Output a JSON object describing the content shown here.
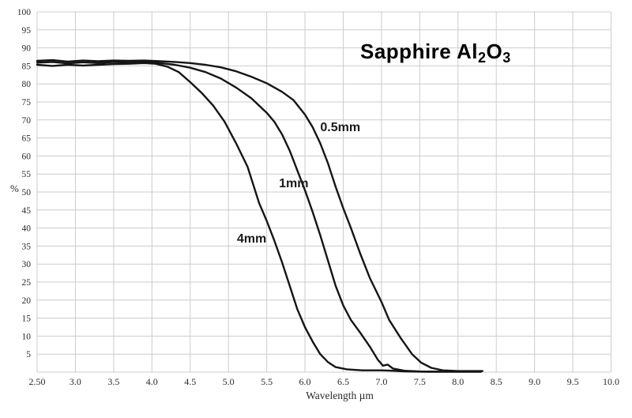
{
  "colors": {
    "background": "#ffffff",
    "grid": "#cccccc",
    "curve": "#151515",
    "text": "#2a2a2a"
  },
  "title": {
    "prefix": "Sapphire Al",
    "sub1": "2",
    "mid": "O",
    "sub2": "3"
  },
  "chart_data": {
    "type": "line",
    "title": "Sapphire Al2O3",
    "xlabel": "Wavelength µm",
    "ylabel": "%",
    "xlim": [
      2.5,
      10.0
    ],
    "ylim": [
      0,
      100
    ],
    "grid": true,
    "x_tick_values": [
      2.5,
      3.0,
      3.5,
      4.0,
      4.5,
      5.0,
      5.5,
      6.0,
      6.5,
      7.0,
      7.5,
      8.0,
      8.5,
      9.0,
      9.5,
      10.0
    ],
    "x_tick_labels": [
      "2.50",
      "3.0",
      "3.5",
      "4.0",
      "4.5",
      "5.0",
      "5.5",
      "6.0",
      "6.5",
      "7.0",
      "7.5",
      "8.0",
      "8.5",
      "9.0",
      "9.5",
      "10.0"
    ],
    "y_grid_step": 5,
    "y_tick_values": [
      100,
      95,
      90,
      85,
      80,
      75,
      70,
      65,
      60,
      55,
      50,
      45,
      40,
      35,
      30,
      25,
      20,
      15,
      10,
      5
    ],
    "y_tick_labels": [
      "100",
      "95",
      "90",
      "85",
      "80",
      "75",
      "70",
      "65",
      "60",
      "55",
      "50",
      "45",
      "40",
      "35",
      "30",
      "25",
      "20",
      "15",
      "10",
      "5"
    ],
    "series": [
      {
        "name": "0.5mm",
        "points": [
          [
            2.5,
            86.4
          ],
          [
            2.7,
            86.6
          ],
          [
            2.9,
            86.2
          ],
          [
            3.1,
            86.5
          ],
          [
            3.3,
            86.3
          ],
          [
            3.5,
            86.5
          ],
          [
            3.7,
            86.4
          ],
          [
            3.9,
            86.5
          ],
          [
            4.1,
            86.3
          ],
          [
            4.3,
            86.1
          ],
          [
            4.5,
            85.8
          ],
          [
            4.7,
            85.3
          ],
          [
            4.9,
            84.6
          ],
          [
            5.1,
            83.5
          ],
          [
            5.3,
            82.0
          ],
          [
            5.5,
            80.2
          ],
          [
            5.7,
            77.8
          ],
          [
            5.85,
            75.5
          ],
          [
            6.0,
            71.5
          ],
          [
            6.1,
            68.0
          ],
          [
            6.2,
            63.5
          ],
          [
            6.3,
            58.0
          ],
          [
            6.4,
            51.5
          ],
          [
            6.5,
            45.5
          ],
          [
            6.6,
            40.0
          ],
          [
            6.72,
            33.0
          ],
          [
            6.85,
            26.0
          ],
          [
            7.0,
            19.5
          ],
          [
            7.1,
            14.5
          ],
          [
            7.25,
            9.5
          ],
          [
            7.4,
            5.0
          ],
          [
            7.52,
            2.6
          ],
          [
            7.65,
            1.2
          ],
          [
            7.8,
            0.5
          ],
          [
            8.0,
            0.3
          ],
          [
            8.32,
            0.3
          ]
        ]
      },
      {
        "name": "1mm",
        "points": [
          [
            2.5,
            85.9
          ],
          [
            2.7,
            86.1
          ],
          [
            2.9,
            85.7
          ],
          [
            3.1,
            86.0
          ],
          [
            3.3,
            85.8
          ],
          [
            3.5,
            86.1
          ],
          [
            3.7,
            85.9
          ],
          [
            3.9,
            86.1
          ],
          [
            4.1,
            85.8
          ],
          [
            4.3,
            85.3
          ],
          [
            4.5,
            84.5
          ],
          [
            4.7,
            83.3
          ],
          [
            4.9,
            81.5
          ],
          [
            5.1,
            79.0
          ],
          [
            5.3,
            76.0
          ],
          [
            5.5,
            72.0
          ],
          [
            5.6,
            69.5
          ],
          [
            5.7,
            66.0
          ],
          [
            5.8,
            61.5
          ],
          [
            5.9,
            56.0
          ],
          [
            6.0,
            50.5
          ],
          [
            6.1,
            44.5
          ],
          [
            6.2,
            38.0
          ],
          [
            6.3,
            31.0
          ],
          [
            6.4,
            24.0
          ],
          [
            6.5,
            18.5
          ],
          [
            6.6,
            14.5
          ],
          [
            6.72,
            11.0
          ],
          [
            6.85,
            7.0
          ],
          [
            6.95,
            3.5
          ],
          [
            7.02,
            1.8
          ],
          [
            7.08,
            2.1
          ],
          [
            7.15,
            1.0
          ],
          [
            7.3,
            0.4
          ],
          [
            7.5,
            0.2
          ],
          [
            7.8,
            0.15
          ],
          [
            8.1,
            0.15
          ],
          [
            8.3,
            0.15
          ]
        ]
      },
      {
        "name": "4mm",
        "points": [
          [
            2.5,
            85.3
          ],
          [
            2.7,
            85.0
          ],
          [
            2.9,
            85.3
          ],
          [
            3.1,
            85.1
          ],
          [
            3.3,
            85.3
          ],
          [
            3.5,
            85.5
          ],
          [
            3.7,
            85.6
          ],
          [
            3.9,
            85.8
          ],
          [
            4.05,
            85.6
          ],
          [
            4.2,
            84.8
          ],
          [
            4.35,
            83.3
          ],
          [
            4.5,
            80.5
          ],
          [
            4.65,
            77.5
          ],
          [
            4.8,
            74.0
          ],
          [
            4.95,
            69.5
          ],
          [
            5.1,
            63.5
          ],
          [
            5.25,
            57.0
          ],
          [
            5.4,
            47.0
          ],
          [
            5.5,
            42.0
          ],
          [
            5.6,
            36.5
          ],
          [
            5.7,
            30.5
          ],
          [
            5.8,
            24.0
          ],
          [
            5.9,
            17.5
          ],
          [
            6.0,
            12.5
          ],
          [
            6.1,
            8.5
          ],
          [
            6.2,
            5.0
          ],
          [
            6.3,
            2.8
          ],
          [
            6.4,
            1.4
          ],
          [
            6.55,
            0.8
          ],
          [
            6.75,
            0.5
          ],
          [
            7.0,
            0.5
          ],
          [
            7.15,
            0.4
          ],
          [
            7.3,
            0.2
          ],
          [
            7.6,
            0.1
          ],
          [
            8.0,
            0.1
          ],
          [
            8.3,
            0.1
          ]
        ]
      }
    ],
    "annotations": [
      {
        "text": "0.5mm",
        "x": 6.2,
        "y": 66.9
      },
      {
        "text": "1mm",
        "x": 5.66,
        "y": 51.3
      },
      {
        "text": "4mm",
        "x": 5.11,
        "y": 36.0
      }
    ],
    "legend_position": "inline-labels"
  },
  "axis_labels": {
    "y": "%",
    "x": "Wavelength µm"
  }
}
